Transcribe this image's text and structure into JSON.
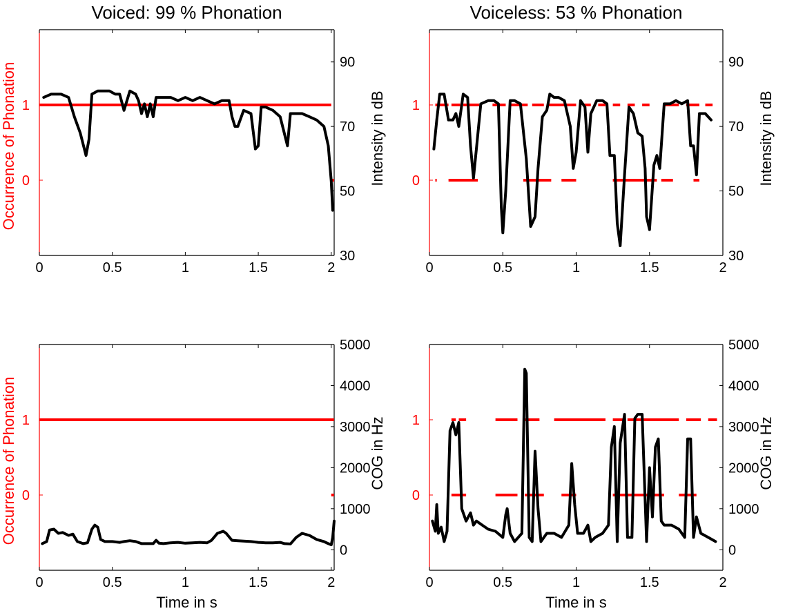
{
  "colors": {
    "phonation": "#ff0000",
    "signal": "#000000",
    "axis": "#000000"
  },
  "chart_data": [
    {
      "id": "voiced-intensity",
      "type": "line",
      "title": "Voiced: 99 % Phonation",
      "xlabel": "",
      "ylabel_left": "Occurrence of Phonation",
      "ylabel_right": "Intensity in dB",
      "xlim": [
        0,
        2.02
      ],
      "xticks": [
        0,
        0.5,
        1,
        1.5,
        2
      ],
      "xtick_labels": [
        "0",
        "0.5",
        "1",
        "1.5",
        "2"
      ],
      "ylim_left": [
        -1,
        2
      ],
      "yticks_left": [
        0,
        1
      ],
      "ytick_labels_left": [
        "0",
        "1"
      ],
      "ylim_right": [
        30,
        100
      ],
      "yticks_right": [
        30,
        50,
        70,
        90
      ],
      "ytick_labels_right": [
        "30",
        "50",
        "70",
        "90"
      ],
      "series": [
        {
          "axis": "left",
          "style": "solid",
          "segments": [
            {
              "y": 1,
              "x": [
                0,
                2.0
              ]
            },
            {
              "y": 0,
              "x": [
                2.0,
                2.02
              ]
            }
          ]
        },
        {
          "axis": "right",
          "x": [
            0.03,
            0.08,
            0.15,
            0.2,
            0.24,
            0.28,
            0.32,
            0.34,
            0.36,
            0.4,
            0.48,
            0.52,
            0.55,
            0.58,
            0.62,
            0.66,
            0.68,
            0.7,
            0.72,
            0.74,
            0.76,
            0.78,
            0.8,
            0.85,
            0.9,
            0.95,
            1.0,
            1.05,
            1.1,
            1.15,
            1.2,
            1.25,
            1.3,
            1.32,
            1.34,
            1.36,
            1.4,
            1.45,
            1.48,
            1.5,
            1.52,
            1.55,
            1.6,
            1.65,
            1.7,
            1.72,
            1.75,
            1.8,
            1.85,
            1.9,
            1.95,
            1.98,
            2.0,
            2.01
          ],
          "y": [
            79,
            80,
            80,
            79,
            73,
            68,
            61,
            66,
            80,
            81,
            81,
            80,
            80,
            75,
            81,
            80,
            78,
            74,
            77,
            73,
            77,
            73,
            79,
            79,
            79,
            78,
            79,
            78,
            79,
            78,
            77,
            78,
            78,
            73,
            70,
            70,
            75,
            74,
            63,
            64,
            76,
            76,
            75,
            73,
            64,
            74,
            74,
            74,
            73,
            72,
            70,
            64,
            53,
            44
          ]
        }
      ]
    },
    {
      "id": "voiceless-intensity",
      "type": "line",
      "title": "Voiceless: 53 % Phonation",
      "xlabel": "",
      "ylabel_left": "",
      "ylabel_right": "Intensity in dB",
      "xlim": [
        0,
        2
      ],
      "xticks": [
        0,
        0.5,
        1,
        1.5,
        2
      ],
      "xtick_labels": [
        "0",
        "0.5",
        "1",
        "1.5",
        "2"
      ],
      "ylim_left": [
        -1,
        2
      ],
      "yticks_left": [
        0,
        1
      ],
      "ytick_labels_left": [
        "0",
        "1"
      ],
      "ylim_right": [
        30,
        100
      ],
      "yticks_right": [
        30,
        50,
        70,
        90
      ],
      "ytick_labels_right": [
        "30",
        "50",
        "70",
        "90"
      ],
      "series": [
        {
          "axis": "left",
          "style": "dashed",
          "segments": [
            {
              "y": 1,
              "x": [
                0.04,
                0.06
              ]
            },
            {
              "y": 1,
              "x": [
                0.07,
                0.13
              ]
            },
            {
              "y": 1,
              "x": [
                0.15,
                0.21
              ]
            },
            {
              "y": 1,
              "x": [
                0.23,
                0.34
              ]
            },
            {
              "y": 0,
              "x": [
                0.04,
                0.05
              ]
            },
            {
              "y": 0,
              "x": [
                0.13,
                0.33
              ]
            },
            {
              "y": 1,
              "x": [
                0.43,
                0.52
              ]
            },
            {
              "y": 1,
              "x": [
                0.55,
                0.67
              ]
            },
            {
              "y": 1,
              "x": [
                0.7,
                0.78
              ]
            },
            {
              "y": 0,
              "x": [
                0.64,
                0.83
              ]
            },
            {
              "y": 1,
              "x": [
                0.81,
                1.0
              ]
            },
            {
              "y": 0,
              "x": [
                0.9,
                1.0
              ]
            },
            {
              "y": 1,
              "x": [
                1.05,
                1.1
              ]
            },
            {
              "y": 1,
              "x": [
                1.15,
                1.2
              ]
            },
            {
              "y": 0,
              "x": [
                1.25,
                1.55
              ]
            },
            {
              "y": 1,
              "x": [
                1.25,
                1.3
              ]
            },
            {
              "y": 1,
              "x": [
                1.35,
                1.4
              ]
            },
            {
              "y": 1,
              "x": [
                1.45,
                1.5
              ]
            },
            {
              "y": 1,
              "x": [
                1.6,
                1.7
              ]
            },
            {
              "y": 1,
              "x": [
                1.75,
                1.84
              ]
            },
            {
              "y": 1,
              "x": [
                1.88,
                1.93
              ]
            },
            {
              "y": 0,
              "x": [
                1.58,
                1.66
              ]
            },
            {
              "y": 0,
              "x": [
                1.8,
                1.84
              ]
            }
          ]
        },
        {
          "axis": "right",
          "x": [
            0.03,
            0.05,
            0.07,
            0.1,
            0.13,
            0.16,
            0.18,
            0.2,
            0.23,
            0.26,
            0.28,
            0.3,
            0.32,
            0.35,
            0.4,
            0.44,
            0.47,
            0.49,
            0.5,
            0.52,
            0.55,
            0.58,
            0.62,
            0.66,
            0.69,
            0.72,
            0.74,
            0.77,
            0.8,
            0.82,
            0.85,
            0.88,
            0.92,
            0.96,
            0.98,
            1.0,
            1.03,
            1.06,
            1.08,
            1.1,
            1.14,
            1.18,
            1.21,
            1.23,
            1.26,
            1.28,
            1.3,
            1.33,
            1.36,
            1.39,
            1.42,
            1.45,
            1.47,
            1.48,
            1.5,
            1.53,
            1.55,
            1.57,
            1.6,
            1.64,
            1.68,
            1.72,
            1.76,
            1.78,
            1.8,
            1.82,
            1.84,
            1.88,
            1.92
          ],
          "y": [
            63,
            72,
            80,
            80,
            72,
            72,
            74,
            70,
            80,
            79,
            64,
            54,
            63,
            77,
            78,
            78,
            77,
            45,
            37,
            50,
            78,
            78,
            77,
            60,
            39,
            42,
            57,
            73,
            75,
            80,
            79,
            79,
            78,
            70,
            57,
            62,
            78,
            76,
            62,
            74,
            78,
            78,
            77,
            61,
            61,
            40,
            33,
            55,
            76,
            74,
            68,
            67,
            57,
            42,
            38,
            58,
            61,
            57,
            77,
            77,
            78,
            77,
            78,
            64,
            64,
            55,
            74,
            74,
            72
          ]
        }
      ]
    },
    {
      "id": "voiced-cog",
      "type": "line",
      "title": "",
      "xlabel": "Time in s",
      "ylabel_left": "Occurrence of Phonation",
      "ylabel_right": "COG in Hz",
      "xlim": [
        0,
        2.02
      ],
      "xticks": [
        0,
        0.5,
        1,
        1.5,
        2
      ],
      "xtick_labels": [
        "0",
        "0.5",
        "1",
        "1.5",
        "2"
      ],
      "ylim_left": [
        -1,
        2
      ],
      "yticks_left": [
        0,
        1
      ],
      "ytick_labels_left": [
        "0",
        "1"
      ],
      "ylim_right": [
        -500,
        5000
      ],
      "yticks_right": [
        0,
        1000,
        2000,
        3000,
        4000,
        5000
      ],
      "ytick_labels_right": [
        "0",
        "1000",
        "2000",
        "3000",
        "4000",
        "5000"
      ],
      "series": [
        {
          "axis": "left",
          "style": "solid",
          "segments": [
            {
              "y": 1,
              "x": [
                0,
                2.02
              ]
            },
            {
              "y": 0,
              "x": [
                2.0,
                2.02
              ]
            }
          ]
        },
        {
          "axis": "right",
          "x": [
            0.02,
            0.05,
            0.07,
            0.1,
            0.13,
            0.16,
            0.2,
            0.23,
            0.26,
            0.3,
            0.33,
            0.36,
            0.38,
            0.4,
            0.42,
            0.45,
            0.5,
            0.55,
            0.58,
            0.62,
            0.66,
            0.7,
            0.75,
            0.78,
            0.8,
            0.82,
            0.85,
            0.9,
            0.95,
            1.0,
            1.05,
            1.1,
            1.15,
            1.18,
            1.22,
            1.26,
            1.28,
            1.32,
            1.36,
            1.4,
            1.45,
            1.5,
            1.55,
            1.6,
            1.65,
            1.68,
            1.72,
            1.76,
            1.8,
            1.85,
            1.9,
            1.95,
            1.98,
            2.0,
            2.01,
            2.02
          ],
          "y": [
            150,
            200,
            480,
            500,
            400,
            420,
            350,
            380,
            200,
            150,
            170,
            500,
            600,
            550,
            250,
            200,
            200,
            180,
            200,
            220,
            200,
            150,
            150,
            150,
            230,
            160,
            150,
            170,
            180,
            160,
            170,
            180,
            170,
            230,
            400,
            450,
            400,
            230,
            220,
            210,
            200,
            180,
            170,
            170,
            180,
            150,
            140,
            300,
            400,
            350,
            250,
            200,
            150,
            120,
            300,
            700
          ]
        }
      ]
    },
    {
      "id": "voiceless-cog",
      "type": "line",
      "title": "",
      "xlabel": "Time in s",
      "ylabel_left": "",
      "ylabel_right": "COG in Hz",
      "xlim": [
        0,
        2
      ],
      "xticks": [
        0,
        0.5,
        1,
        1.5,
        2
      ],
      "xtick_labels": [
        "0",
        "0.5",
        "1",
        "1.5",
        "2"
      ],
      "ylim_left": [
        -1,
        2
      ],
      "yticks_left": [
        0,
        1
      ],
      "ytick_labels_left": [
        "0",
        "1"
      ],
      "ylim_right": [
        -500,
        5000
      ],
      "yticks_right": [
        0,
        1000,
        2000,
        3000,
        4000,
        5000
      ],
      "ytick_labels_right": [
        "0",
        "1000",
        "2000",
        "3000",
        "4000",
        "5000"
      ],
      "series": [
        {
          "axis": "left",
          "style": "dashed",
          "segments": [
            {
              "y": 1,
              "x": [
                0.15,
                0.18
              ]
            },
            {
              "y": 1,
              "x": [
                0.2,
                0.25
              ]
            },
            {
              "y": 0,
              "x": [
                0.15,
                0.25
              ]
            },
            {
              "y": 1,
              "x": [
                0.45,
                0.6
              ]
            },
            {
              "y": 1,
              "x": [
                0.65,
                0.75
              ]
            },
            {
              "y": 1,
              "x": [
                0.85,
                1.0
              ]
            },
            {
              "y": 0,
              "x": [
                0.45,
                0.6
              ]
            },
            {
              "y": 0,
              "x": [
                0.65,
                0.78
              ]
            },
            {
              "y": 0,
              "x": [
                0.9,
                1.0
              ]
            },
            {
              "y": 1,
              "x": [
                1.0,
                1.2
              ]
            },
            {
              "y": 1,
              "x": [
                1.25,
                1.32
              ]
            },
            {
              "y": 1,
              "x": [
                1.35,
                1.7
              ]
            },
            {
              "y": 0,
              "x": [
                1.25,
                1.6
              ]
            },
            {
              "y": 1,
              "x": [
                1.75,
                1.85
              ]
            },
            {
              "y": 1,
              "x": [
                1.9,
                1.96
              ]
            },
            {
              "y": 0,
              "x": [
                1.7,
                1.82
              ]
            }
          ]
        },
        {
          "axis": "right",
          "x": [
            0.02,
            0.04,
            0.05,
            0.06,
            0.08,
            0.1,
            0.12,
            0.14,
            0.16,
            0.18,
            0.2,
            0.22,
            0.25,
            0.28,
            0.3,
            0.32,
            0.36,
            0.4,
            0.45,
            0.5,
            0.52,
            0.53,
            0.55,
            0.58,
            0.63,
            0.65,
            0.66,
            0.68,
            0.7,
            0.72,
            0.74,
            0.76,
            0.8,
            0.85,
            0.9,
            0.95,
            0.97,
            0.99,
            1.01,
            1.05,
            1.08,
            1.1,
            1.13,
            1.18,
            1.22,
            1.24,
            1.26,
            1.28,
            1.3,
            1.33,
            1.35,
            1.38,
            1.4,
            1.42,
            1.45,
            1.48,
            1.5,
            1.52,
            1.54,
            1.56,
            1.58,
            1.6,
            1.65,
            1.7,
            1.74,
            1.76,
            1.78,
            1.8,
            1.82,
            1.85,
            1.9,
            1.95
          ],
          "y": [
            700,
            450,
            1100,
            400,
            550,
            200,
            450,
            2900,
            3100,
            2800,
            3100,
            1000,
            700,
            900,
            600,
            700,
            600,
            500,
            450,
            300,
            850,
            1000,
            400,
            200,
            400,
            4400,
            4300,
            300,
            200,
            2400,
            1000,
            200,
            400,
            400,
            300,
            600,
            2100,
            1100,
            400,
            400,
            600,
            200,
            300,
            400,
            600,
            2500,
            3000,
            200,
            2600,
            3300,
            300,
            300,
            3200,
            3300,
            3300,
            200,
            2000,
            800,
            2500,
            2700,
            700,
            600,
            600,
            500,
            300,
            2700,
            2700,
            300,
            800,
            400,
            300,
            200
          ]
        }
      ]
    }
  ]
}
